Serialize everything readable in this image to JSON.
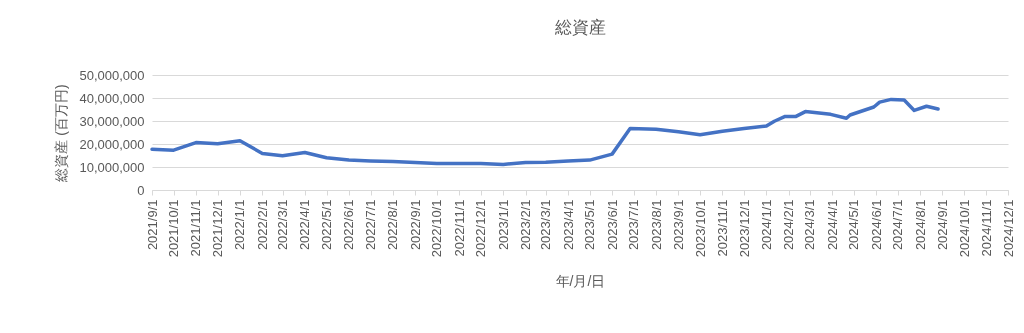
{
  "chart_data": {
    "type": "line",
    "title": "総資産",
    "xlabel": "年/月/日",
    "ylabel": "総資産 (百万円)",
    "x": [
      "2021-09-01",
      "2021-10-01",
      "2021-11-01",
      "2021-12-01",
      "2022-01-01",
      "2022-02-01",
      "2022-03-01",
      "2022-04-01",
      "2022-05-01",
      "2022-06-01",
      "2022-07-01",
      "2022-08-01",
      "2022-09-01",
      "2022-10-01",
      "2022-11-01",
      "2022-12-01",
      "2023-01-01",
      "2023-02-01",
      "2023-03-01",
      "2023-04-01",
      "2023-05-01",
      "2023-06-01",
      "2023-06-26",
      "2023-08-01",
      "2023-09-01",
      "2023-10-01",
      "2023-11-01",
      "2023-12-01",
      "2024-01-01",
      "2024-01-12",
      "2024-01-27",
      "2024-02-11",
      "2024-02-24",
      "2024-03-30",
      "2024-04-21",
      "2024-04-26",
      "2024-05-29",
      "2024-06-06",
      "2024-06-22",
      "2024-07-10",
      "2024-07-24",
      "2024-08-10",
      "2024-08-26"
    ],
    "series": [
      {
        "color": "#4472c4",
        "values": [
          17700000,
          17300000,
          20600000,
          20100000,
          21400000,
          15900000,
          14900000,
          16300000,
          14000000,
          13000000,
          12600000,
          12400000,
          12000000,
          11500000,
          11500000,
          11500000,
          11100000,
          12000000,
          12100000,
          12600000,
          13000000,
          15600000,
          26700000,
          26400000,
          25300000,
          24000000,
          25500000,
          26700000,
          27800000,
          29900000,
          32000000,
          32000000,
          34100000,
          32900000,
          31200000,
          32600000,
          36100000,
          38200000,
          39400000,
          39100000,
          34600000,
          36400000,
          35200000
        ]
      }
    ],
    "xlim": [
      "2021-09-01",
      "2024-12-01"
    ],
    "xticks": [
      {
        "value": "2021-09-01",
        "label": "2021/9/1"
      },
      {
        "value": "2021-10-01",
        "label": "2021/10/1"
      },
      {
        "value": "2021-11-01",
        "label": "2021/11/1"
      },
      {
        "value": "2021-12-01",
        "label": "2021/12/1"
      },
      {
        "value": "2022-01-01",
        "label": "2022/1/1"
      },
      {
        "value": "2022-02-01",
        "label": "2022/2/1"
      },
      {
        "value": "2022-03-01",
        "label": "2022/3/1"
      },
      {
        "value": "2022-04-01",
        "label": "2022/4/1"
      },
      {
        "value": "2022-05-01",
        "label": "2022/5/1"
      },
      {
        "value": "2022-06-01",
        "label": "2022/6/1"
      },
      {
        "value": "2022-07-01",
        "label": "2022/7/1"
      },
      {
        "value": "2022-08-01",
        "label": "2022/8/1"
      },
      {
        "value": "2022-09-01",
        "label": "2022/9/1"
      },
      {
        "value": "2022-10-01",
        "label": "2022/10/1"
      },
      {
        "value": "2022-11-01",
        "label": "2022/11/1"
      },
      {
        "value": "2022-12-01",
        "label": "2022/12/1"
      },
      {
        "value": "2023-01-01",
        "label": "2023/1/1"
      },
      {
        "value": "2023-02-01",
        "label": "2023/2/1"
      },
      {
        "value": "2023-03-01",
        "label": "2023/3/1"
      },
      {
        "value": "2023-04-01",
        "label": "2023/4/1"
      },
      {
        "value": "2023-05-01",
        "label": "2023/5/1"
      },
      {
        "value": "2023-06-01",
        "label": "2023/6/1"
      },
      {
        "value": "2023-07-01",
        "label": "2023/7/1"
      },
      {
        "value": "2023-08-01",
        "label": "2023/8/1"
      },
      {
        "value": "2023-09-01",
        "label": "2023/9/1"
      },
      {
        "value": "2023-10-01",
        "label": "2023/10/1"
      },
      {
        "value": "2023-11-01",
        "label": "2023/11/1"
      },
      {
        "value": "2023-12-01",
        "label": "2023/12/1"
      },
      {
        "value": "2024-01-01",
        "label": "2024/1/1"
      },
      {
        "value": "2024-02-01",
        "label": "2024/2/1"
      },
      {
        "value": "2024-03-01",
        "label": "2024/3/1"
      },
      {
        "value": "2024-04-01",
        "label": "2024/4/1"
      },
      {
        "value": "2024-05-01",
        "label": "2024/5/1"
      },
      {
        "value": "2024-06-01",
        "label": "2024/6/1"
      },
      {
        "value": "2024-07-01",
        "label": "2024/7/1"
      },
      {
        "value": "2024-08-01",
        "label": "2024/8/1"
      },
      {
        "value": "2024-09-01",
        "label": "2024/9/1"
      },
      {
        "value": "2024-10-01",
        "label": "2024/10/1"
      },
      {
        "value": "2024-11-01",
        "label": "2024/11/1"
      },
      {
        "value": "2024-12-01",
        "label": "2024/12/1"
      }
    ],
    "ylim": [
      0,
      50000000
    ],
    "yticks": [
      {
        "value": 0,
        "label": "0"
      },
      {
        "value": 10000000,
        "label": "10,000,000"
      },
      {
        "value": 20000000,
        "label": "20,000,000"
      },
      {
        "value": 30000000,
        "label": "30,000,000"
      },
      {
        "value": 40000000,
        "label": "40,000,000"
      },
      {
        "value": 50000000,
        "label": "50,000,000"
      }
    ],
    "grid": "y",
    "marker": "none",
    "line_style": "solid"
  }
}
